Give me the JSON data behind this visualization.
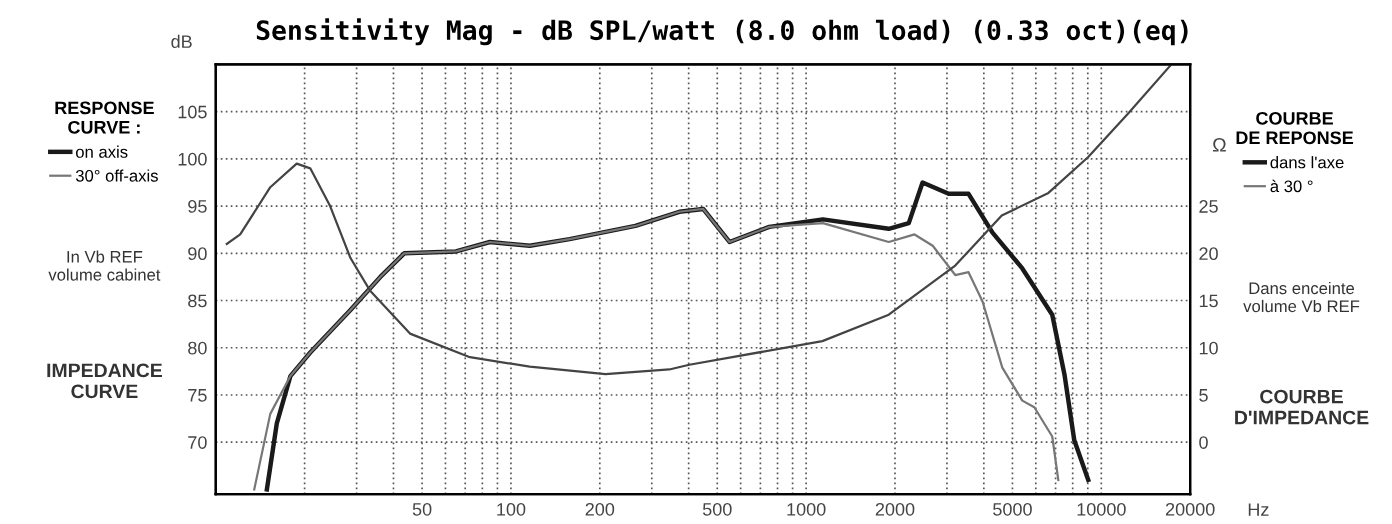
{
  "chart_data": {
    "type": "line",
    "title": "Sensitivity Mag - dB SPL/watt (8.0 ohm load) (0.33 oct)(eq)",
    "xlabel": "Hz",
    "ylabel": "dB",
    "y2label": "Ω",
    "legend_title": "RESPONSE\nCURVE :",
    "log": "x",
    "grid": true,
    "legend": "left",
    "xlim": [
      10,
      20000
    ],
    "xticks": [
      {
        "value": 20,
        "label": null
      },
      {
        "value": 30,
        "label": null
      },
      {
        "value": 40,
        "label": null
      },
      50,
      {
        "value": 60,
        "label": null
      },
      {
        "value": 70,
        "label": null
      },
      {
        "value": 80,
        "label": null
      },
      {
        "value": 90,
        "label": null
      },
      100,
      200,
      {
        "value": 300,
        "label": null
      },
      {
        "value": 400,
        "label": null
      },
      500,
      {
        "value": 600,
        "label": null
      },
      {
        "value": 700,
        "label": null
      },
      {
        "value": 800,
        "label": null
      },
      {
        "value": 900,
        "label": null
      },
      1000,
      2000,
      {
        "value": 3000,
        "label": null
      },
      {
        "value": 4000,
        "label": null
      },
      5000,
      {
        "value": 6000,
        "label": null
      },
      {
        "value": 7000,
        "label": null
      },
      {
        "value": 8000,
        "label": null
      },
      {
        "value": 9000,
        "label": null
      },
      10000,
      20000
    ],
    "ylim": [
      64.5,
      110
    ],
    "yticks": [
      70,
      75,
      80,
      85,
      90,
      95,
      100,
      105
    ],
    "y2lim": [
      -5.5,
      40
    ],
    "y2ticks": [
      0,
      5,
      10,
      15,
      20,
      25
    ],
    "series": [
      {
        "name": "on axis",
        "color": "#1a1a1a",
        "x": [
          14.9,
          16.1,
          17.9,
          20.9,
          28.6,
          36.1,
          43.5,
          65.1,
          84.9,
          115.8,
          158,
          264,
          372,
          448,
          550,
          750,
          1140,
          1905,
          2227,
          2480,
          3040,
          3550,
          4280,
          5400,
          6820,
          7500,
          8100,
          9030
        ],
        "values": [
          65,
          72,
          77,
          79.5,
          84,
          87.5,
          90,
          90.2,
          91.2,
          90.8,
          91.5,
          92.9,
          94.4,
          94.7,
          91.2,
          92.8,
          93.6,
          92.6,
          93.2,
          97.5,
          96.3,
          96.3,
          92.2,
          88.4,
          83.5,
          77.2,
          70.2,
          66
        ]
      },
      {
        "name": "30° off-axis",
        "color": "#777777",
        "x": [
          13.5,
          15.3,
          17.9,
          20.9,
          28.6,
          36.1,
          43.5,
          65.1,
          84.9,
          115.8,
          158,
          264,
          372,
          448,
          550,
          750,
          1140,
          1905,
          2330,
          2685,
          3200,
          3550,
          3960,
          4620,
          5400,
          5930,
          6820,
          7150
        ],
        "values": [
          65,
          73,
          77,
          79.5,
          84,
          87.5,
          90,
          90.2,
          91.2,
          90.8,
          91.5,
          92.9,
          94.4,
          94.7,
          91.2,
          92.8,
          93.2,
          91.2,
          92.0,
          90.8,
          87.7,
          88.0,
          84.9,
          77.9,
          74.4,
          73.7,
          70.6,
          66
        ]
      },
      {
        "axis": "y2",
        "color": "#444444",
        "x": [
          10.9,
          12.1,
          15.3,
          18.8,
          20.9,
          24.4,
          28.6,
          33.4,
          45.5,
          72.6,
          115.8,
          209,
          344,
          402,
          1135,
          1905,
          3200,
          4600,
          6620,
          9030,
          12330,
          17270
        ],
        "values": [
          21,
          22,
          27,
          29.5,
          29,
          25,
          19.5,
          16,
          11.5,
          9,
          8,
          7.2,
          7.7,
          8.2,
          10.7,
          13.5,
          18.7,
          24,
          26.4,
          30.2,
          34.8,
          40
        ]
      }
    ],
    "annotations": [
      "In Vb REF\nvolume cabinet",
      "IMPEDANCE\nCURVE",
      "COURBE\nDE REPONSE",
      "dans l'axe",
      "à 30 °",
      "Dans enceinte\nvolume Vb REF",
      "COURBE\nD'IMPEDANCE"
    ]
  }
}
